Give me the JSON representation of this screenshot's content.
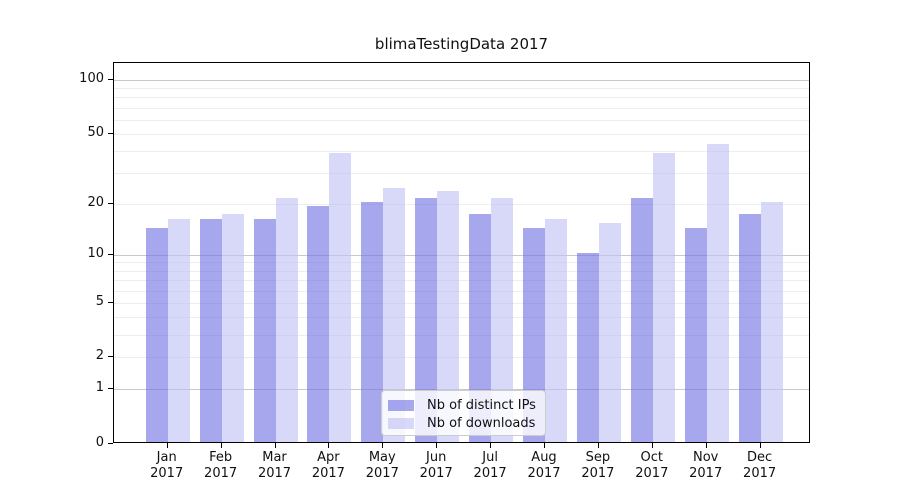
{
  "title": "blimaTestingData 2017",
  "chart_data": {
    "type": "bar",
    "title": "blimaTestingData 2017",
    "categories": [
      "Jan 2017",
      "Feb 2017",
      "Mar 2017",
      "Apr 2017",
      "May 2017",
      "Jun 2017",
      "Jul 2017",
      "Aug 2017",
      "Sep 2017",
      "Oct 2017",
      "Nov 2017",
      "Dec 2017"
    ],
    "series": [
      {
        "name": "Nb of distinct IPs",
        "color": "#7474e4",
        "alpha": 0.63,
        "values": [
          14,
          16,
          16,
          19,
          20,
          21,
          17,
          14,
          10,
          21,
          14,
          17
        ]
      },
      {
        "name": "Nb of downloads",
        "color": "#c1c1f4",
        "alpha": 0.63,
        "values": [
          16,
          17,
          21,
          38,
          24,
          23,
          21,
          16,
          15,
          38,
          43,
          20
        ]
      }
    ],
    "xlabel": "",
    "ylabel": "",
    "y_scale": "log10(1+value)",
    "ylim": [
      0,
      124
    ],
    "y_tick_labels": [
      0,
      1,
      2,
      5,
      10,
      20,
      50,
      100
    ],
    "grid": true,
    "grid_major_values": [
      1,
      10,
      100
    ],
    "grid_minor_values": [
      2,
      3,
      4,
      5,
      6,
      7,
      8,
      9,
      20,
      30,
      40,
      50,
      60,
      70,
      80,
      90
    ],
    "legend_position": "lower center",
    "colors": {
      "bar_distinct_ips_on_white": "#a8a8ee",
      "bar_downloads_on_white": "#d8d8f8",
      "grid_major": "#c9c9c9",
      "grid_minor": "#ededed",
      "axis": "#000000",
      "text": "#111111",
      "background": "#ffffff",
      "legend_border": "#cccccc"
    }
  }
}
